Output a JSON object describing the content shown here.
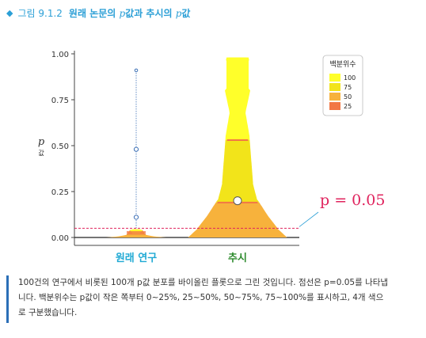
{
  "figure": {
    "label": "그림 9.1.2",
    "title_prefix": "원래 논문의 ",
    "title_p1": "p",
    "title_mid": "값과 추시의 ",
    "title_p2": "p",
    "title_suffix": "값"
  },
  "chart_data": {
    "type": "violin",
    "ylabel_symbol": "p",
    "ylabel_suffix": "값",
    "ylim": [
      0,
      1
    ],
    "yticks": [
      0.0,
      0.25,
      0.5,
      0.75,
      1.0
    ],
    "ytick_labels": [
      "0.00",
      "0.25",
      "0.50",
      "0.75",
      "1.00"
    ],
    "categories": [
      "원래 연구",
      "추시"
    ],
    "category_colors": [
      "#1fa9d4",
      "#2e8b2e"
    ],
    "threshold": {
      "value": 0.05,
      "label": "p = 0.05",
      "color": "#e0245e"
    },
    "original_points": [
      0.05,
      0.11,
      0.48,
      0.91
    ],
    "replication_point": 0.2,
    "replication_quartiles": [
      0.19,
      0.53
    ],
    "original_quartiles": [
      0.02,
      0.03
    ],
    "legend": {
      "title": "백분위수",
      "items": [
        {
          "label": "100",
          "color": "#ffff2a"
        },
        {
          "label": "75",
          "color": "#f2e41a"
        },
        {
          "label": "50",
          "color": "#f7b23c"
        },
        {
          "label": "25",
          "color": "#f27745"
        }
      ]
    }
  },
  "caption": {
    "line1": "100건의 연구에서 비롯된 100개 p값 분포를 바이올린 플롯으로 그린 것입니다. 점선은 p=0.05를 나타냅",
    "line2": "니다. 백분위수는 p값이 작은 쪽부터 0~25%, 25~50%, 50~75%, 75~100%를 표시하고, 4개 색으",
    "line3": "로 구분했습니다."
  }
}
